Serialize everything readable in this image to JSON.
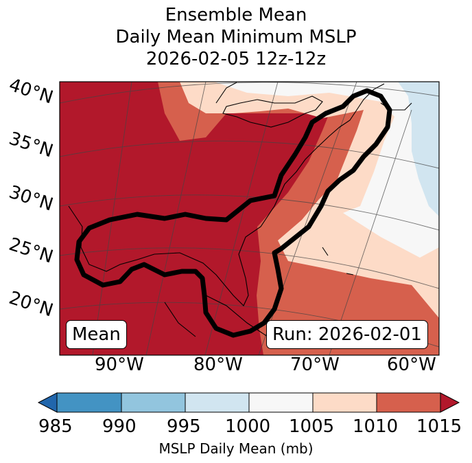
{
  "title": {
    "line1": "Ensemble Mean",
    "line2": "Daily Mean Minimum MSLP",
    "line3": "2026-02-05 12z-12z"
  },
  "map": {
    "lat_labels": [
      "40°N",
      "35°N",
      "30°N",
      "25°N",
      "20°N"
    ],
    "lon_labels": [
      "90°W",
      "80°W",
      "70°W",
      "60°W"
    ],
    "box_left": "Mean",
    "box_right": "Run: 2026-02-01",
    "region": "Eastern United States / Gulf of Mexico / Western Atlantic"
  },
  "colorbar": {
    "ticks": [
      "985",
      "990",
      "995",
      "1000",
      "1005",
      "1010",
      "1015"
    ],
    "label": "MSLP Daily Mean (mb)",
    "colors": [
      "#2166ac",
      "#4393c3",
      "#92c5de",
      "#d1e5f0",
      "#f7f7f7",
      "#fddbc7",
      "#d6604d",
      "#b2182b"
    ]
  },
  "chart_data": {
    "type": "map",
    "variable": "MSLP Daily Mean (mb)",
    "bins": [
      {
        "range": "<985",
        "color": "#2166ac"
      },
      {
        "range": "985-990",
        "color": "#4393c3"
      },
      {
        "range": "990-995",
        "color": "#92c5de"
      },
      {
        "range": "995-1000",
        "color": "#d1e5f0"
      },
      {
        "range": "1000-1005",
        "color": "#f7f7f7"
      },
      {
        "range": "1005-1010",
        "color": "#fddbc7"
      },
      {
        "range": "1010-1015",
        "color": "#d6604d"
      },
      {
        "range": ">1015",
        "color": "#b2182b"
      }
    ]
  }
}
